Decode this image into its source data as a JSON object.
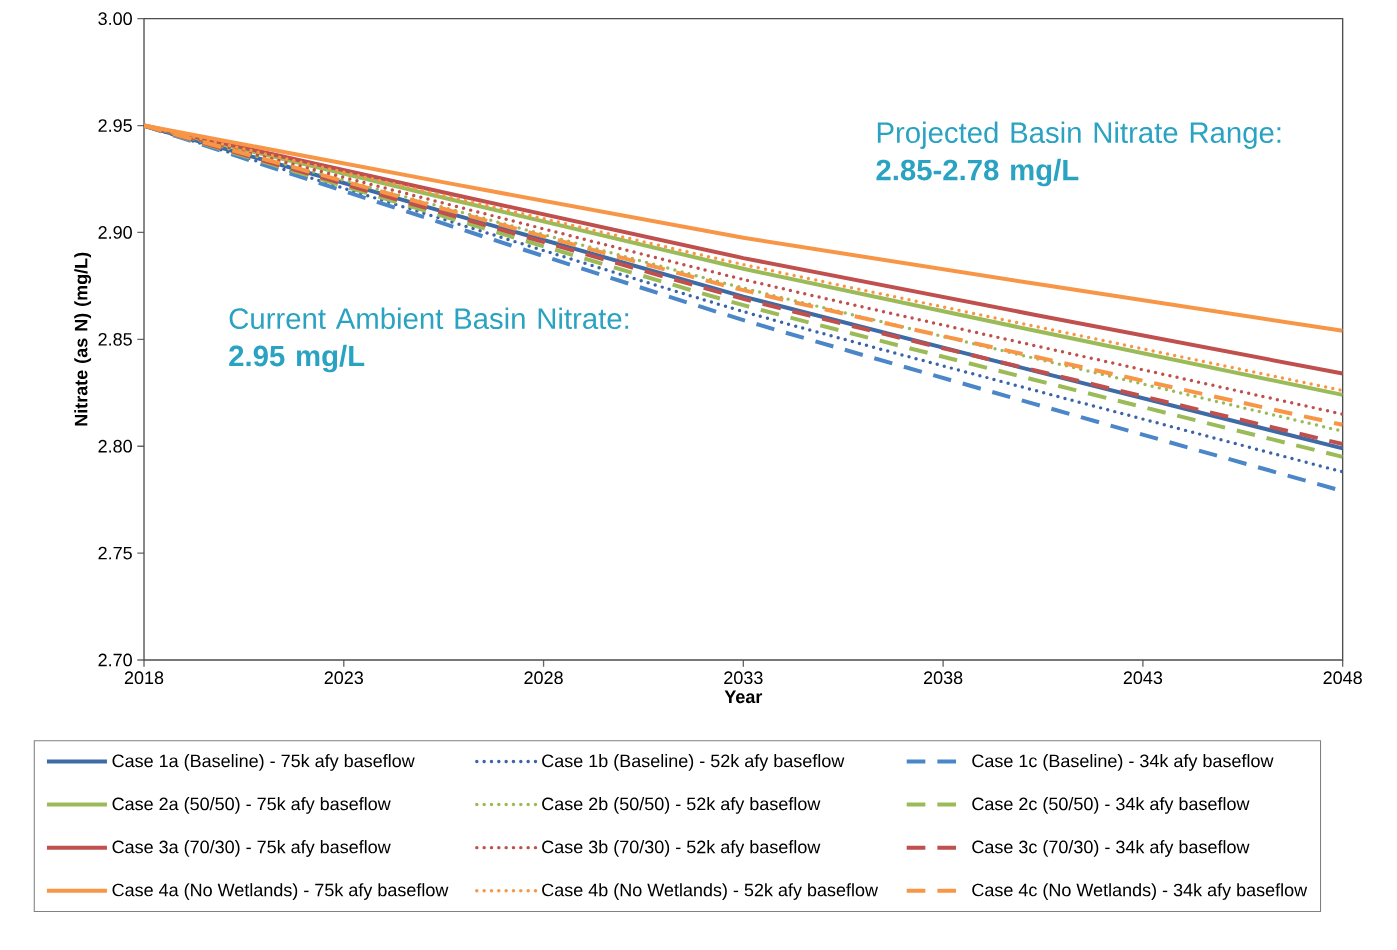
{
  "chart_data": {
    "type": "line",
    "xlabel": "Year",
    "ylabel": "Nitrate (as N) (mg/L)",
    "x": [
      2018,
      2033,
      2048
    ],
    "series": [
      {
        "name": "Case 1a (Baseline) - 75k afy baseflow",
        "color": "#3e6aa5",
        "line_style": "solid",
        "values": [
          2.95,
          2.87,
          2.799
        ]
      },
      {
        "name": "Case 1b (Baseline) - 52k afy baseflow",
        "color": "#3a64a8",
        "line_style": "dotted",
        "values": [
          2.95,
          2.863,
          2.788
        ]
      },
      {
        "name": "Case 1c (Baseline) - 34k afy baseflow",
        "color": "#4a86c8",
        "line_style": "dashed",
        "values": [
          2.95,
          2.859,
          2.779
        ]
      },
      {
        "name": "Case 2a (50/50) - 75k afy baseflow",
        "color": "#9bbb59",
        "line_style": "solid",
        "values": [
          2.95,
          2.883,
          2.824
        ]
      },
      {
        "name": "Case 2b (50/50) - 52k afy baseflow",
        "color": "#9bbb59",
        "line_style": "dotted",
        "values": [
          2.95,
          2.874,
          2.807
        ]
      },
      {
        "name": "Case 2c (50/50) - 34k afy baseflow",
        "color": "#9bbb59",
        "line_style": "dashed",
        "values": [
          2.95,
          2.866,
          2.795
        ]
      },
      {
        "name": "Case 3a (70/30) - 75k afy baseflow",
        "color": "#c0504d",
        "line_style": "solid",
        "values": [
          2.95,
          2.888,
          2.834
        ]
      },
      {
        "name": "Case 3b (70/30) - 52k afy baseflow",
        "color": "#c0504d",
        "line_style": "dotted",
        "values": [
          2.95,
          2.878,
          2.815
        ]
      },
      {
        "name": "Case 3c (70/30) - 34k afy baseflow",
        "color": "#c0504d",
        "line_style": "dashed",
        "values": [
          2.95,
          2.869,
          2.801
        ]
      },
      {
        "name": "Case 4a (No Wetlands) - 75k afy baseflow",
        "color": "#f79646",
        "line_style": "solid",
        "values": [
          2.95,
          2.8975,
          2.854
        ]
      },
      {
        "name": "Case 4b (No Wetlands) - 52k afy baseflow",
        "color": "#f79646",
        "line_style": "dotted",
        "values": [
          2.95,
          2.885,
          2.826
        ]
      },
      {
        "name": "Case 4c (No Wetlands) - 34k afy baseflow",
        "color": "#f79646",
        "line_style": "dashed",
        "values": [
          2.95,
          2.873,
          2.81
        ]
      }
    ],
    "xlim": [
      2018,
      2048
    ],
    "xticks": [
      2018,
      2023,
      2028,
      2033,
      2038,
      2043,
      2048
    ],
    "ylim": [
      2.7,
      3.0
    ],
    "yticks": [
      {
        "value": 2.7,
        "label": "2.70"
      },
      {
        "value": 2.75,
        "label": "2.75"
      },
      {
        "value": 2.8,
        "label": "2.80"
      },
      {
        "value": 2.85,
        "label": "2.85"
      },
      {
        "value": 2.9,
        "label": "2.90"
      },
      {
        "value": 2.95,
        "label": "2.95"
      },
      {
        "value": 3.0,
        "label": "3.00"
      }
    ],
    "annotations": [
      "Projected Basin Nitrate Range: **2.85-2.78 mg/L**",
      "Current Ambient Basin Nitrate: **2.95 mg/L**"
    ],
    "legend": "bottom",
    "grid": false
  }
}
